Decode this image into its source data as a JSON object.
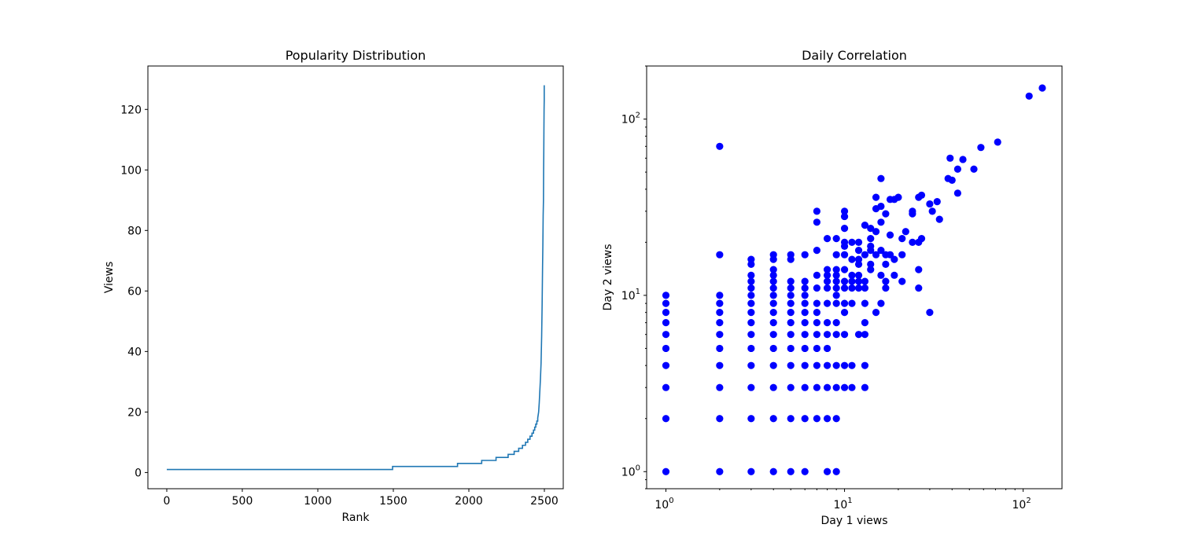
{
  "chart_data": [
    {
      "type": "line",
      "title": "Popularity Distribution",
      "xlabel": "Rank",
      "ylabel": "Views",
      "xlim": [
        -125,
        2625
      ],
      "ylim": [
        -5.35,
        134.35
      ],
      "xticks": [
        0,
        500,
        1000,
        1500,
        2000,
        2500
      ],
      "yticks": [
        0,
        20,
        40,
        60,
        80,
        100,
        120
      ],
      "grid": false,
      "color": "#1f77b4",
      "series": [
        {
          "x": [
            0,
            1495,
            1495,
            1925,
            1925,
            2085,
            2085,
            2180,
            2180,
            2260,
            2260,
            2300,
            2300,
            2330,
            2330,
            2355,
            2355,
            2375,
            2375,
            2390,
            2390,
            2405,
            2405,
            2418,
            2418,
            2428,
            2428,
            2436,
            2436,
            2443,
            2443,
            2450,
            2450,
            2456,
            2456,
            2462,
            2466,
            2470,
            2474,
            2478,
            2482,
            2485,
            2488,
            2490,
            2492,
            2494,
            2495,
            2496,
            2497,
            2498,
            2499,
            2499
          ],
          "y": [
            1,
            1,
            2,
            2,
            3,
            3,
            4,
            4,
            5,
            5,
            6,
            6,
            7,
            7,
            8,
            8,
            9,
            9,
            10,
            10,
            11,
            11,
            12,
            12,
            13,
            13,
            14,
            14,
            15,
            15,
            16,
            16,
            17,
            17,
            18,
            20,
            23,
            27,
            31,
            36,
            45,
            55,
            68,
            75,
            85,
            90,
            100,
            105,
            113,
            120,
            123,
            128
          ]
        }
      ]
    },
    {
      "type": "scatter",
      "title": "Daily Correlation",
      "xlabel": "Day 1 views",
      "ylabel": "Day 2 views",
      "xscale": "log",
      "yscale": "log",
      "xlim": [
        0.78,
        165
      ],
      "ylim": [
        0.8,
        200
      ],
      "xticks": [
        1,
        10,
        100
      ],
      "yticks": [
        1,
        10,
        100
      ],
      "tick_base": "10",
      "tick_exponents": [
        "0",
        "1",
        "2"
      ],
      "grid": false,
      "color": "#0000ff",
      "points": [
        [
          1,
          1
        ],
        [
          1,
          2
        ],
        [
          1,
          3
        ],
        [
          1,
          4
        ],
        [
          1,
          5
        ],
        [
          1,
          6
        ],
        [
          1,
          7
        ],
        [
          1,
          8
        ],
        [
          1,
          9
        ],
        [
          1,
          10
        ],
        [
          2,
          1
        ],
        [
          2,
          2
        ],
        [
          2,
          3
        ],
        [
          2,
          4
        ],
        [
          2,
          5
        ],
        [
          2,
          6
        ],
        [
          2,
          7
        ],
        [
          2,
          8
        ],
        [
          2,
          9
        ],
        [
          2,
          10
        ],
        [
          2,
          17
        ],
        [
          2,
          70
        ],
        [
          3,
          1
        ],
        [
          3,
          2
        ],
        [
          3,
          3
        ],
        [
          3,
          4
        ],
        [
          3,
          5
        ],
        [
          3,
          6
        ],
        [
          3,
          7
        ],
        [
          3,
          8
        ],
        [
          3,
          9
        ],
        [
          3,
          10
        ],
        [
          3,
          11
        ],
        [
          3,
          12
        ],
        [
          3,
          13
        ],
        [
          3,
          15
        ],
        [
          3,
          16
        ],
        [
          4,
          1
        ],
        [
          4,
          2
        ],
        [
          4,
          3
        ],
        [
          4,
          4
        ],
        [
          4,
          5
        ],
        [
          4,
          6
        ],
        [
          4,
          7
        ],
        [
          4,
          8
        ],
        [
          4,
          9
        ],
        [
          4,
          10
        ],
        [
          4,
          11
        ],
        [
          4,
          12
        ],
        [
          4,
          13
        ],
        [
          4,
          14
        ],
        [
          4,
          16
        ],
        [
          4,
          17
        ],
        [
          5,
          1
        ],
        [
          5,
          2
        ],
        [
          5,
          3
        ],
        [
          5,
          4
        ],
        [
          5,
          5
        ],
        [
          5,
          6
        ],
        [
          5,
          7
        ],
        [
          5,
          8
        ],
        [
          5,
          9
        ],
        [
          5,
          10
        ],
        [
          5,
          11
        ],
        [
          5,
          12
        ],
        [
          5,
          16
        ],
        [
          5,
          17
        ],
        [
          6,
          1
        ],
        [
          6,
          2
        ],
        [
          6,
          3
        ],
        [
          6,
          4
        ],
        [
          6,
          5
        ],
        [
          6,
          6
        ],
        [
          6,
          7
        ],
        [
          6,
          8
        ],
        [
          6,
          9
        ],
        [
          6,
          10
        ],
        [
          6,
          11
        ],
        [
          6,
          12
        ],
        [
          6,
          17
        ],
        [
          7,
          2
        ],
        [
          7,
          3
        ],
        [
          7,
          4
        ],
        [
          7,
          5
        ],
        [
          7,
          6
        ],
        [
          7,
          7
        ],
        [
          7,
          8
        ],
        [
          7,
          9
        ],
        [
          7,
          11
        ],
        [
          7,
          13
        ],
        [
          7,
          18
        ],
        [
          7,
          26
        ],
        [
          7,
          30
        ],
        [
          8,
          1
        ],
        [
          8,
          2
        ],
        [
          8,
          3
        ],
        [
          8,
          4
        ],
        [
          8,
          5
        ],
        [
          8,
          6
        ],
        [
          8,
          7
        ],
        [
          8,
          9
        ],
        [
          8,
          11
        ],
        [
          8,
          12
        ],
        [
          8,
          13
        ],
        [
          8,
          14
        ],
        [
          8,
          21
        ],
        [
          9,
          1
        ],
        [
          9,
          2
        ],
        [
          9,
          3
        ],
        [
          9,
          4
        ],
        [
          9,
          6
        ],
        [
          9,
          7
        ],
        [
          9,
          9
        ],
        [
          9,
          10
        ],
        [
          9,
          11
        ],
        [
          9,
          12
        ],
        [
          9,
          13
        ],
        [
          9,
          14
        ],
        [
          9,
          17
        ],
        [
          9,
          21
        ],
        [
          10,
          3
        ],
        [
          10,
          4
        ],
        [
          10,
          6
        ],
        [
          10,
          8
        ],
        [
          10,
          9
        ],
        [
          10,
          11
        ],
        [
          10,
          12
        ],
        [
          10,
          14
        ],
        [
          10,
          17
        ],
        [
          10,
          19
        ],
        [
          10,
          20
        ],
        [
          10,
          24
        ],
        [
          10,
          28
        ],
        [
          10,
          30
        ],
        [
          11,
          3
        ],
        [
          11,
          4
        ],
        [
          11,
          9
        ],
        [
          11,
          11
        ],
        [
          11,
          12
        ],
        [
          11,
          13
        ],
        [
          11,
          16
        ],
        [
          11,
          20
        ],
        [
          12,
          6
        ],
        [
          12,
          11
        ],
        [
          12,
          12
        ],
        [
          12,
          13
        ],
        [
          12,
          15
        ],
        [
          12,
          16
        ],
        [
          12,
          18
        ],
        [
          12,
          20
        ],
        [
          13,
          3
        ],
        [
          13,
          4
        ],
        [
          13,
          6
        ],
        [
          13,
          7
        ],
        [
          13,
          9
        ],
        [
          13,
          11
        ],
        [
          13,
          12
        ],
        [
          13,
          17
        ],
        [
          13,
          25
        ],
        [
          14,
          14
        ],
        [
          14,
          15
        ],
        [
          14,
          18
        ],
        [
          14,
          19
        ],
        [
          14,
          21
        ],
        [
          14,
          24
        ],
        [
          15,
          8
        ],
        [
          15,
          17
        ],
        [
          15,
          23
        ],
        [
          15,
          31
        ],
        [
          15,
          36
        ],
        [
          16,
          9
        ],
        [
          16,
          13
        ],
        [
          16,
          18
        ],
        [
          16,
          26
        ],
        [
          16,
          32
        ],
        [
          16,
          46
        ],
        [
          17,
          11
        ],
        [
          17,
          12
        ],
        [
          17,
          15
        ],
        [
          17,
          17
        ],
        [
          17,
          29
        ],
        [
          18,
          17
        ],
        [
          18,
          22
        ],
        [
          18,
          35
        ],
        [
          19,
          13
        ],
        [
          19,
          16
        ],
        [
          19,
          35
        ],
        [
          20,
          36
        ],
        [
          21,
          12
        ],
        [
          21,
          17
        ],
        [
          21,
          21
        ],
        [
          22,
          23
        ],
        [
          24,
          20
        ],
        [
          24,
          29
        ],
        [
          24,
          30
        ],
        [
          26,
          11
        ],
        [
          26,
          14
        ],
        [
          26,
          20
        ],
        [
          26,
          36
        ],
        [
          27,
          21
        ],
        [
          27,
          37
        ],
        [
          30,
          8
        ],
        [
          30,
          33
        ],
        [
          31,
          30
        ],
        [
          33,
          34
        ],
        [
          34,
          27
        ],
        [
          38,
          46
        ],
        [
          39,
          60
        ],
        [
          40,
          45
        ],
        [
          43,
          38
        ],
        [
          43,
          52
        ],
        [
          46,
          59
        ],
        [
          53,
          52
        ],
        [
          58,
          69
        ],
        [
          72,
          74
        ],
        [
          108,
          135
        ],
        [
          128,
          150
        ]
      ]
    }
  ]
}
